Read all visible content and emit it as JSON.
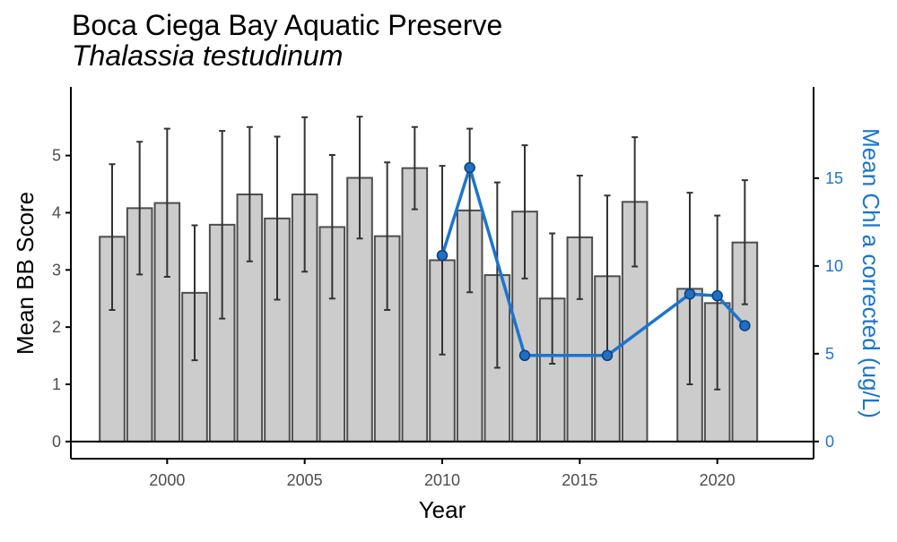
{
  "chart_data": {
    "type": "bar",
    "title": "Boca Ciega Bay Aquatic Preserve",
    "subtitle": "Thalassia testudinum",
    "xlabel": "Year",
    "ylabel": "Mean BB Score",
    "ylabel_right": "Mean Chl a corrected (ug/L)",
    "xlim": [
      1996.5,
      2023.5
    ],
    "ylim": [
      -0.3,
      6.2
    ],
    "ylim_right": [
      -0.98,
      20.2
    ],
    "x_ticks": [
      2000,
      2005,
      2010,
      2015,
      2020
    ],
    "y_ticks": [
      0,
      1,
      2,
      3,
      4,
      5
    ],
    "y_ticks_right": [
      0,
      5,
      10,
      15
    ],
    "grid": false,
    "legend": "none",
    "colors": {
      "bar_fill": "#cccccc",
      "bar_stroke": "#4d4d4d",
      "error_bar": "#333333",
      "line": "#1a75cf",
      "point_fill": "#1f6fc4",
      "point_stroke": "#0d3f7a",
      "right_axis": "#1a75cf",
      "axis": "#000000",
      "tick_label": "#4d4d4d"
    },
    "bars": [
      {
        "x": 1998,
        "mean": 3.58,
        "lower": 2.3,
        "upper": 4.85
      },
      {
        "x": 1999,
        "mean": 4.08,
        "lower": 2.92,
        "upper": 5.24
      },
      {
        "x": 2000,
        "mean": 4.17,
        "lower": 2.88,
        "upper": 5.47
      },
      {
        "x": 2001,
        "mean": 2.6,
        "lower": 1.42,
        "upper": 3.78
      },
      {
        "x": 2002,
        "mean": 3.79,
        "lower": 2.15,
        "upper": 5.43
      },
      {
        "x": 2003,
        "mean": 4.32,
        "lower": 3.15,
        "upper": 5.5
      },
      {
        "x": 2004,
        "mean": 3.9,
        "lower": 2.48,
        "upper": 5.33
      },
      {
        "x": 2005,
        "mean": 4.32,
        "lower": 2.97,
        "upper": 5.67
      },
      {
        "x": 2006,
        "mean": 3.75,
        "lower": 2.5,
        "upper": 5.01
      },
      {
        "x": 2007,
        "mean": 4.61,
        "lower": 3.55,
        "upper": 5.68
      },
      {
        "x": 2008,
        "mean": 3.59,
        "lower": 2.3,
        "upper": 4.88
      },
      {
        "x": 2009,
        "mean": 4.78,
        "lower": 4.06,
        "upper": 5.5
      },
      {
        "x": 2010,
        "mean": 3.17,
        "lower": 1.52,
        "upper": 4.82
      },
      {
        "x": 2011,
        "mean": 4.04,
        "lower": 2.61,
        "upper": 5.47
      },
      {
        "x": 2012,
        "mean": 2.91,
        "lower": 1.29,
        "upper": 4.53
      },
      {
        "x": 2013,
        "mean": 4.02,
        "lower": 2.85,
        "upper": 5.18
      },
      {
        "x": 2014,
        "mean": 2.5,
        "lower": 1.36,
        "upper": 3.64
      },
      {
        "x": 2015,
        "mean": 3.57,
        "lower": 2.49,
        "upper": 4.65
      },
      {
        "x": 2016,
        "mean": 2.89,
        "lower": 1.48,
        "upper": 4.3
      },
      {
        "x": 2017,
        "mean": 4.19,
        "lower": 3.06,
        "upper": 5.32
      },
      {
        "x": 2019,
        "mean": 2.67,
        "lower": 1.0,
        "upper": 4.35
      },
      {
        "x": 2020,
        "mean": 2.42,
        "lower": 0.91,
        "upper": 3.95
      },
      {
        "x": 2021,
        "mean": 3.48,
        "lower": 2.4,
        "upper": 4.57
      }
    ],
    "chl_segments": [
      [
        {
          "x": 2010,
          "y": 10.6
        },
        {
          "x": 2011,
          "y": 15.6
        },
        {
          "x": 2013,
          "y": 4.9
        },
        {
          "x": 2016,
          "y": 4.9
        },
        {
          "x": 2019,
          "y": 8.4
        },
        {
          "x": 2020,
          "y": 8.3
        },
        {
          "x": 2021,
          "y": 6.6
        }
      ]
    ],
    "chl_points": [
      {
        "x": 2010,
        "y": 10.6
      },
      {
        "x": 2011,
        "y": 15.6
      },
      {
        "x": 2013,
        "y": 4.9
      },
      {
        "x": 2016,
        "y": 4.9
      },
      {
        "x": 2019,
        "y": 8.4
      },
      {
        "x": 2020,
        "y": 8.3
      },
      {
        "x": 2021,
        "y": 6.6
      }
    ]
  }
}
